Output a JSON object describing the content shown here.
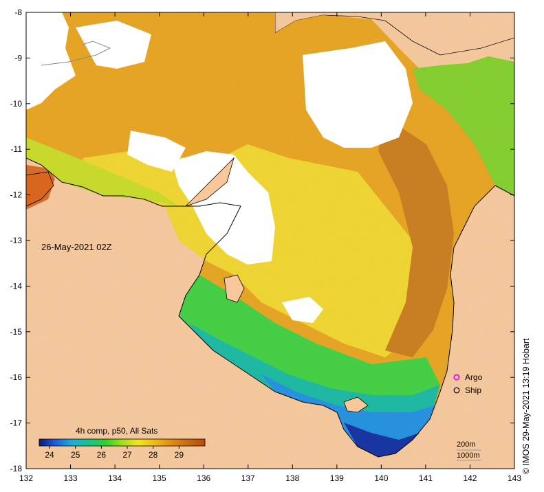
{
  "map": {
    "timestamp": "26-May-2021 02Z",
    "x_ticks": [
      "132",
      "133",
      "134",
      "135",
      "136",
      "137",
      "138",
      "139",
      "140",
      "141",
      "142",
      "143"
    ],
    "y_ticks": [
      "-8",
      "-9",
      "-10",
      "-11",
      "-12",
      "-13",
      "-14",
      "-15",
      "-16",
      "-17",
      "-18"
    ],
    "x_range": [
      132,
      143
    ],
    "y_range": [
      -18,
      -8
    ],
    "colorbar": {
      "title": "4h comp, p50, All Sats",
      "ticks": [
        "24",
        "25",
        "26",
        "27",
        "28",
        "29"
      ],
      "range": [
        23.6,
        30.0
      ],
      "colors": [
        "#0a1a7a",
        "#1f5fe0",
        "#19b0d8",
        "#14c48c",
        "#2ed02e",
        "#9fe01a",
        "#f4e41e",
        "#f0b818",
        "#e08c10",
        "#c86a10",
        "#b84a08"
      ]
    },
    "legend": {
      "argo_label": "Argo",
      "ship_label": "Ship",
      "argo_color": "#e020e0"
    },
    "contours": {
      "label_200": "200m",
      "label_1000": "1000m"
    },
    "credit": "© IMOS 29-May-2021 13:19 Hobart",
    "colors": {
      "land": "#f8c89a",
      "cloud": "#ffffff"
    }
  }
}
